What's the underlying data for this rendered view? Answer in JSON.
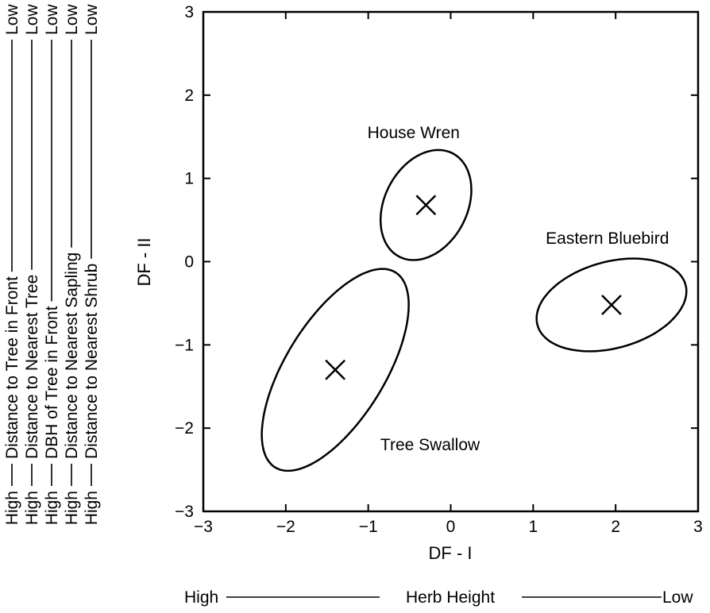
{
  "chart_data": {
    "type": "scatter",
    "xlabel": "DF - I",
    "ylabel": "DF - II",
    "xlim": [
      -3,
      3
    ],
    "ylim": [
      -3,
      3
    ],
    "xticks": [
      "−3",
      "−2",
      "−1",
      "0",
      "1",
      "2",
      "3"
    ],
    "yticks": [
      "3",
      "2",
      "1",
      "0",
      "−1",
      "−2",
      "−3"
    ],
    "grid": false,
    "series": [
      {
        "name": "House Wren",
        "centroid": [
          -0.3,
          0.68
        ],
        "ellipse": {
          "semi_axis_1": 0.7,
          "semi_axis_2": 0.5,
          "angle_deg": 62
        }
      },
      {
        "name": "Eastern Bluebird",
        "centroid": [
          1.95,
          -0.52
        ],
        "ellipse": {
          "semi_axis_1": 0.93,
          "semi_axis_2": 0.52,
          "angle_deg": 15
        }
      },
      {
        "name": "Tree Swallow",
        "centroid": [
          -1.4,
          -1.3
        ],
        "ellipse": {
          "semi_axis_1": 1.38,
          "semi_axis_2": 0.6,
          "angle_deg": 58
        }
      }
    ],
    "x_gradient": {
      "high": "High",
      "variable": "Herb Height",
      "low": "Low"
    },
    "y_gradients": [
      {
        "high": "High",
        "variable": "Distance to Tree in Front",
        "low": "Low"
      },
      {
        "high": "High",
        "variable": "Distance to Nearest Tree",
        "low": "Low"
      },
      {
        "high": "High",
        "variable": "DBH of Tree in Front",
        "low": "Low"
      },
      {
        "high": "High",
        "variable": "Distance to Nearest Sapling",
        "low": "Low"
      },
      {
        "high": "High",
        "variable": "Distance to Nearest Shrub",
        "low": "Low"
      }
    ]
  }
}
